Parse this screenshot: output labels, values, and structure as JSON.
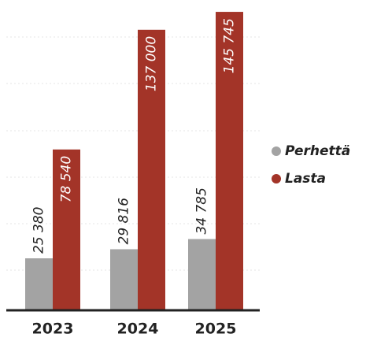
{
  "chart_data": {
    "type": "bar",
    "categories": [
      "2023",
      "2024",
      "2025"
    ],
    "series": [
      {
        "name": "Perhettä",
        "color": "#a3a3a3",
        "values": [
          25380,
          29816,
          34785
        ],
        "value_labels": [
          "25 380",
          "29 816",
          "34 785"
        ]
      },
      {
        "name": "Lasta",
        "color": "#a33428",
        "values": [
          78540,
          137000,
          145745
        ],
        "value_labels": [
          "78 540",
          "137 000",
          "145 745"
        ]
      }
    ],
    "ylim": [
      0,
      150000
    ],
    "legend": "right"
  }
}
